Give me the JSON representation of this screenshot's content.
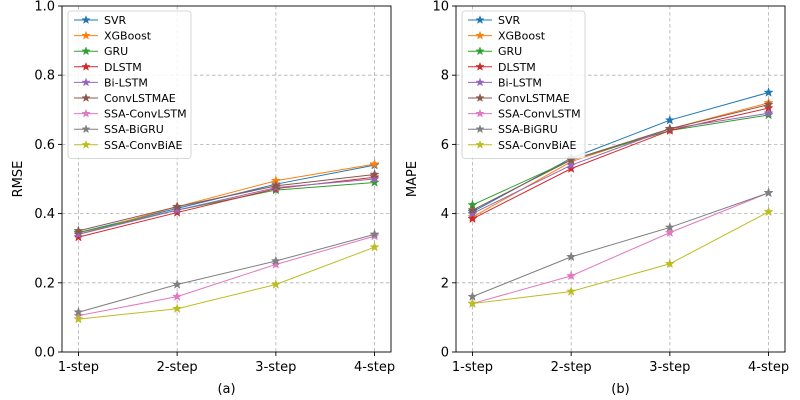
{
  "chart_data": [
    {
      "type": "line",
      "panel_label": "(a)",
      "ylabel": "RMSE",
      "xlabel": "",
      "categories": [
        "1-step",
        "2-step",
        "3-step",
        "4-step"
      ],
      "ylim": [
        0,
        1.0
      ],
      "yticks": [
        "0.0",
        "0.2",
        "0.4",
        "0.6",
        "0.8",
        "1.0"
      ],
      "ytick_values": [
        0,
        0.2,
        0.4,
        0.6,
        0.8,
        1.0
      ],
      "grid": true,
      "legend_position": "top-left",
      "series": [
        {
          "name": "SVR",
          "color": "#1f77b4",
          "values": [
            0.345,
            0.415,
            0.485,
            0.54
          ]
        },
        {
          "name": "XGBoost",
          "color": "#ff7f0e",
          "values": [
            0.34,
            0.42,
            0.495,
            0.543
          ]
        },
        {
          "name": "GRU",
          "color": "#2ca02c",
          "values": [
            0.345,
            0.41,
            0.468,
            0.49
          ]
        },
        {
          "name": "DLSTM",
          "color": "#d62728",
          "values": [
            0.332,
            0.403,
            0.472,
            0.505
          ]
        },
        {
          "name": "Bi-LSTM",
          "color": "#9467bd",
          "values": [
            0.34,
            0.41,
            0.475,
            0.5
          ]
        },
        {
          "name": "ConvLSTMAE",
          "color": "#8c564b",
          "values": [
            0.35,
            0.42,
            0.48,
            0.513
          ]
        },
        {
          "name": "SSA-ConvLSTM",
          "color": "#e377c2",
          "values": [
            0.105,
            0.16,
            0.253,
            0.335
          ]
        },
        {
          "name": "SSA-BiGRU",
          "color": "#7f7f7f",
          "values": [
            0.115,
            0.195,
            0.263,
            0.34
          ]
        },
        {
          "name": "SSA-ConvBiAE",
          "color": "#bcbd22",
          "values": [
            0.095,
            0.125,
            0.195,
            0.303
          ]
        }
      ]
    },
    {
      "type": "line",
      "panel_label": "(b)",
      "ylabel": "MAPE",
      "xlabel": "",
      "categories": [
        "1-step",
        "2-step",
        "3-step",
        "4-step"
      ],
      "ylim": [
        0,
        10
      ],
      "yticks": [
        "0",
        "2",
        "4",
        "6",
        "8",
        "10"
      ],
      "ytick_values": [
        0,
        2,
        4,
        6,
        8,
        10
      ],
      "grid": true,
      "legend_position": "top-left",
      "series": [
        {
          "name": "SVR",
          "color": "#1f77b4",
          "values": [
            4.05,
            5.6,
            6.7,
            7.5
          ]
        },
        {
          "name": "XGBoost",
          "color": "#ff7f0e",
          "values": [
            3.9,
            5.5,
            6.45,
            7.2
          ]
        },
        {
          "name": "GRU",
          "color": "#2ca02c",
          "values": [
            4.25,
            5.55,
            6.4,
            6.85
          ]
        },
        {
          "name": "DLSTM",
          "color": "#d62728",
          "values": [
            3.85,
            5.3,
            6.4,
            7.05
          ]
        },
        {
          "name": "Bi-LSTM",
          "color": "#9467bd",
          "values": [
            4.0,
            5.4,
            6.45,
            6.9
          ]
        },
        {
          "name": "ConvLSTMAE",
          "color": "#8c564b",
          "values": [
            4.1,
            5.55,
            6.45,
            7.15
          ]
        },
        {
          "name": "SSA-ConvLSTM",
          "color": "#e377c2",
          "values": [
            1.4,
            2.2,
            3.45,
            4.6
          ]
        },
        {
          "name": "SSA-BiGRU",
          "color": "#7f7f7f",
          "values": [
            1.6,
            2.75,
            3.6,
            4.6
          ]
        },
        {
          "name": "SSA-ConvBiAE",
          "color": "#bcbd22",
          "values": [
            1.4,
            1.75,
            2.55,
            4.05
          ]
        }
      ]
    }
  ]
}
